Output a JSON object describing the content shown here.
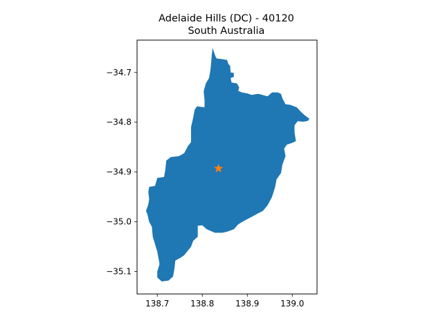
{
  "title": {
    "line1": "Adelaide Hills (DC) - 40120",
    "line2": "South Australia"
  },
  "map_data": {
    "type": "choropleth-outline",
    "fill_color": "#1f77b4",
    "marker": {
      "symbol": "star-icon",
      "color": "#ff7f0e",
      "lon": 138.836,
      "lat": -34.893
    },
    "xlim": [
      138.655,
      139.055
    ],
    "ylim": [
      -35.145,
      -34.635
    ],
    "xticks": [
      {
        "value": 138.7,
        "label": "138.7"
      },
      {
        "value": 138.8,
        "label": "138.8"
      },
      {
        "value": 138.9,
        "label": "138.9"
      },
      {
        "value": 139.0,
        "label": "139.0"
      }
    ],
    "yticks": [
      {
        "value": -34.7,
        "label": "−34.7"
      },
      {
        "value": -34.8,
        "label": "−34.8"
      },
      {
        "value": -34.9,
        "label": "−34.9"
      },
      {
        "value": -35.0,
        "label": "−35.0"
      },
      {
        "value": -35.1,
        "label": "−35.1"
      }
    ],
    "boundary": [
      [
        138.823,
        -34.651
      ],
      [
        138.829,
        -34.667
      ],
      [
        138.832,
        -34.672
      ],
      [
        138.842,
        -34.673
      ],
      [
        138.855,
        -34.675
      ],
      [
        138.858,
        -34.683
      ],
      [
        138.862,
        -34.687
      ],
      [
        138.863,
        -34.7
      ],
      [
        138.87,
        -34.701
      ],
      [
        138.87,
        -34.709
      ],
      [
        138.863,
        -34.711
      ],
      [
        138.865,
        -34.72
      ],
      [
        138.877,
        -34.722
      ],
      [
        138.882,
        -34.73
      ],
      [
        138.88,
        -34.737
      ],
      [
        138.888,
        -34.74
      ],
      [
        138.9,
        -34.742
      ],
      [
        138.91,
        -34.745
      ],
      [
        138.917,
        -34.744
      ],
      [
        138.925,
        -34.743
      ],
      [
        138.945,
        -34.748
      ],
      [
        138.955,
        -34.74
      ],
      [
        138.968,
        -34.74
      ],
      [
        138.975,
        -34.743
      ],
      [
        138.978,
        -34.752
      ],
      [
        138.985,
        -34.764
      ],
      [
        138.995,
        -34.765
      ],
      [
        139.01,
        -34.77
      ],
      [
        139.02,
        -34.78
      ],
      [
        139.028,
        -34.786
      ],
      [
        139.038,
        -34.793
      ],
      [
        139.035,
        -34.797
      ],
      [
        139.025,
        -34.799
      ],
      [
        139.012,
        -34.798
      ],
      [
        139.005,
        -34.806
      ],
      [
        139.005,
        -34.82
      ],
      [
        139.008,
        -34.838
      ],
      [
        138.998,
        -34.842
      ],
      [
        138.988,
        -34.845
      ],
      [
        138.982,
        -34.853
      ],
      [
        138.985,
        -34.868
      ],
      [
        138.978,
        -34.885
      ],
      [
        138.975,
        -34.902
      ],
      [
        138.965,
        -34.915
      ],
      [
        138.962,
        -34.93
      ],
      [
        138.955,
        -34.95
      ],
      [
        138.945,
        -34.967
      ],
      [
        138.935,
        -34.978
      ],
      [
        138.92,
        -34.985
      ],
      [
        138.91,
        -34.99
      ],
      [
        138.895,
        -34.997
      ],
      [
        138.88,
        -35.005
      ],
      [
        138.87,
        -35.015
      ],
      [
        138.855,
        -35.02
      ],
      [
        138.845,
        -35.022
      ],
      [
        138.828,
        -35.022
      ],
      [
        138.81,
        -35.015
      ],
      [
        138.8,
        -35.007
      ],
      [
        138.79,
        -35.008
      ],
      [
        138.79,
        -35.03
      ],
      [
        138.78,
        -35.038
      ],
      [
        138.775,
        -35.05
      ],
      [
        138.768,
        -35.058
      ],
      [
        138.76,
        -35.067
      ],
      [
        138.752,
        -35.072
      ],
      [
        138.74,
        -35.078
      ],
      [
        138.738,
        -35.095
      ],
      [
        138.735,
        -35.11
      ],
      [
        138.725,
        -35.118
      ],
      [
        138.71,
        -35.12
      ],
      [
        138.7,
        -35.112
      ],
      [
        138.7,
        -35.1
      ],
      [
        138.705,
        -35.085
      ],
      [
        138.703,
        -35.075
      ],
      [
        138.7,
        -35.06
      ],
      [
        138.695,
        -35.045
      ],
      [
        138.69,
        -35.03
      ],
      [
        138.688,
        -35.01
      ],
      [
        138.682,
        -35.0
      ],
      [
        138.678,
        -34.985
      ],
      [
        138.675,
        -34.978
      ],
      [
        138.68,
        -34.965
      ],
      [
        138.682,
        -34.955
      ],
      [
        138.68,
        -34.94
      ],
      [
        138.682,
        -34.93
      ],
      [
        138.695,
        -34.928
      ],
      [
        138.7,
        -34.912
      ],
      [
        138.715,
        -34.91
      ],
      [
        138.718,
        -34.895
      ],
      [
        138.72,
        -34.877
      ],
      [
        138.73,
        -34.87
      ],
      [
        138.748,
        -34.868
      ],
      [
        138.76,
        -34.862
      ],
      [
        138.768,
        -34.848
      ],
      [
        138.775,
        -34.84
      ],
      [
        138.775,
        -34.825
      ],
      [
        138.775,
        -34.81
      ],
      [
        138.78,
        -34.79
      ],
      [
        138.783,
        -34.775
      ],
      [
        138.788,
        -34.768
      ],
      [
        138.805,
        -34.77
      ],
      [
        138.805,
        -34.755
      ],
      [
        138.803,
        -34.738
      ],
      [
        138.808,
        -34.722
      ],
      [
        138.815,
        -34.711
      ],
      [
        138.818,
        -34.695
      ],
      [
        138.82,
        -34.678
      ],
      [
        138.821,
        -34.665
      ]
    ]
  }
}
